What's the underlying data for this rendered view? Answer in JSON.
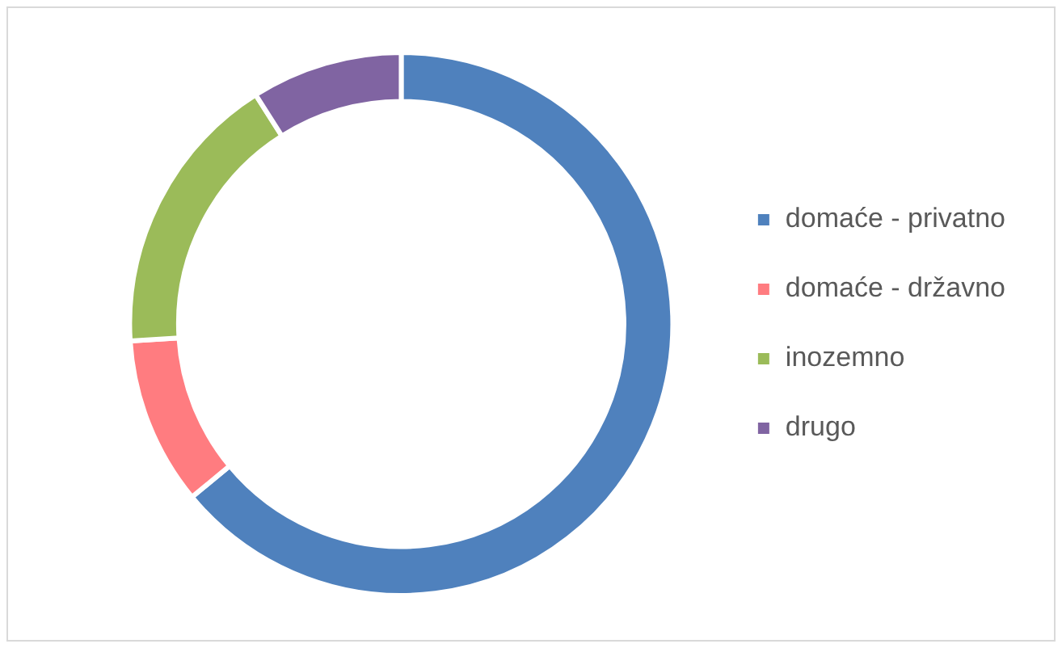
{
  "chart_data": {
    "type": "donut",
    "categories": [
      "domaće - privatno",
      "domaće - državno",
      "inozemno",
      "drugo"
    ],
    "values": [
      64,
      10,
      17,
      9
    ],
    "colors": [
      "#4f81bd",
      "#ff7c80",
      "#9bbb59",
      "#8064a2"
    ],
    "legend": "right"
  }
}
